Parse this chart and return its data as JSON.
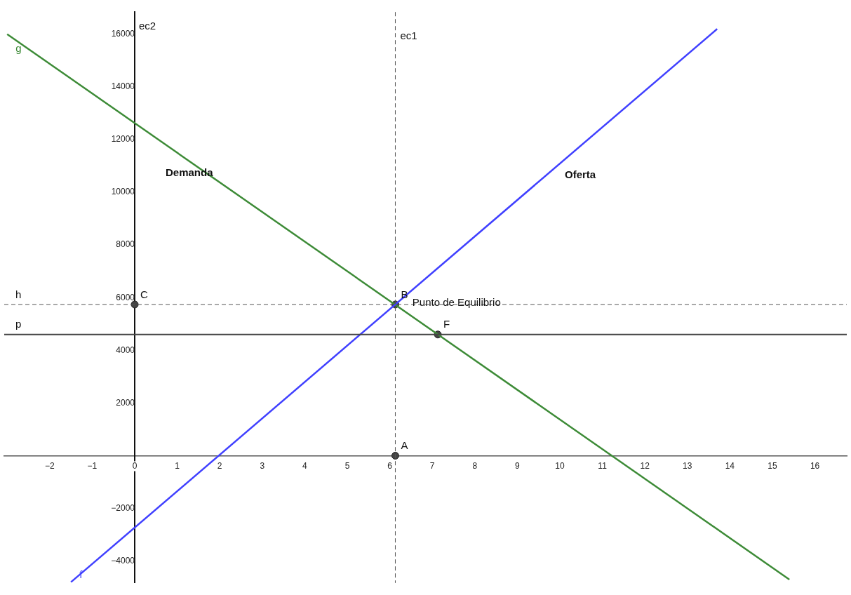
{
  "chart_data": {
    "type": "line",
    "xlim": [
      -3.07,
      16.75
    ],
    "ylim": [
      -4830,
      16840
    ],
    "xticks": [
      -2,
      -1,
      0,
      1,
      2,
      3,
      4,
      5,
      6,
      7,
      8,
      9,
      10,
      11,
      12,
      13,
      14,
      15,
      16
    ],
    "yticks": [
      -4000,
      -2000,
      2000,
      4000,
      6000,
      8000,
      10000,
      12000,
      14000,
      16000
    ],
    "grid": false,
    "legend": false,
    "series": [
      {
        "name": "f",
        "color": "#4040ff",
        "x": [
          -1.5,
          13.7
        ],
        "values": [
          -4800,
          16200
        ]
      },
      {
        "name": "g",
        "color": "#3d8b37",
        "x": [
          -3,
          15.4
        ],
        "values": [
          16000,
          -4700
        ]
      },
      {
        "type": "scatter",
        "color": "#444444",
        "marker": "circle",
        "x": [
          6.13,
          6.13,
          0,
          7.13
        ],
        "values": [
          0,
          5740,
          5740,
          4600
        ]
      }
    ],
    "ref_lines": [
      {
        "axis": "x",
        "value": 6.13,
        "label": "ec1",
        "color": "#555555",
        "line_style": "dashed"
      },
      {
        "axis": "y",
        "value": 5740,
        "label": "h",
        "color": "#555555",
        "line_style": "dashed"
      },
      {
        "axis": "y",
        "value": 4600,
        "label": "p",
        "color": "#444444",
        "line_style": "solid"
      }
    ],
    "annotations": [
      "ec2",
      {
        "text": "A",
        "x": 6.13,
        "y": 0
      },
      {
        "text": "B",
        "x": 6.13,
        "y": 5740
      },
      {
        "text": "C",
        "x": 0,
        "y": 5740
      },
      {
        "text": "F",
        "x": 7.13,
        "y": 4600
      },
      "Demanda",
      "Oferta",
      {
        "text": "Punto de Equilibrio",
        "x": 6.4,
        "y": 5440
      }
    ]
  }
}
